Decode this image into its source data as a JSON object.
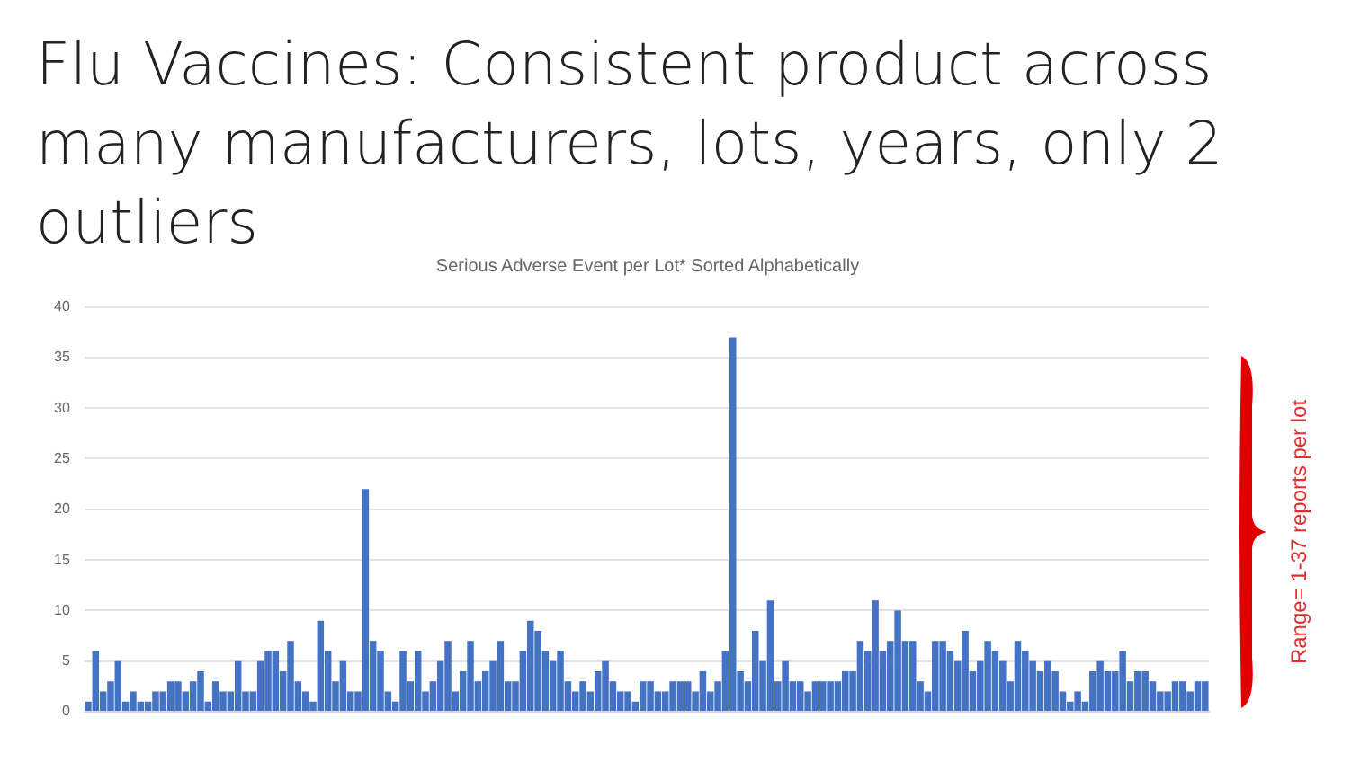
{
  "chart_data": {
    "type": "bar",
    "title": "Flu Vaccines: Consistent product across many manufacturers, lots, years, only 2 outliers",
    "subtitle": "Serious Adverse Event per Lot* Sorted Alphabetically",
    "annotations": [
      "Range= 1-37 reports per lot"
    ],
    "categories": [
      null,
      null,
      null,
      null,
      null,
      null,
      null,
      null,
      null,
      null,
      null,
      null,
      null,
      null,
      null,
      null,
      null,
      null,
      null,
      null,
      null,
      null,
      null,
      null,
      null,
      null,
      null,
      null,
      null,
      null,
      null,
      null,
      null,
      null,
      null,
      null,
      null,
      null,
      null,
      null,
      null,
      null,
      null,
      null,
      null,
      null,
      null,
      null,
      null,
      null,
      null,
      null,
      null,
      null,
      null,
      null,
      null,
      null,
      null,
      null,
      null,
      null,
      null,
      null,
      null,
      null,
      null,
      null,
      null,
      null,
      null,
      null,
      null,
      null,
      null,
      null,
      null,
      null,
      null,
      null,
      null,
      null,
      null,
      null,
      null,
      null,
      null,
      null,
      null,
      null,
      null,
      null,
      null,
      null,
      null,
      null,
      null,
      null,
      null,
      null,
      null,
      null,
      null,
      null,
      null,
      null,
      null,
      null,
      null,
      null,
      null,
      null,
      null,
      null,
      null,
      null,
      null,
      null,
      null,
      null,
      null,
      null,
      null,
      null,
      null,
      null,
      null,
      null,
      null,
      null,
      null,
      null,
      null,
      null,
      null,
      null,
      null,
      null,
      null,
      null,
      null,
      null,
      null,
      null,
      null,
      null,
      null,
      null,
      null,
      null
    ],
    "values": [
      1,
      6,
      2,
      3,
      5,
      1,
      2,
      1,
      1,
      2,
      2,
      3,
      3,
      2,
      3,
      4,
      1,
      3,
      2,
      2,
      5,
      2,
      2,
      5,
      6,
      6,
      4,
      7,
      3,
      2,
      1,
      9,
      6,
      3,
      5,
      2,
      2,
      22,
      7,
      6,
      2,
      1,
      6,
      3,
      6,
      2,
      3,
      5,
      7,
      2,
      4,
      7,
      3,
      4,
      5,
      7,
      3,
      3,
      6,
      9,
      8,
      6,
      5,
      6,
      3,
      2,
      3,
      2,
      4,
      5,
      3,
      2,
      2,
      1,
      3,
      3,
      2,
      2,
      3,
      3,
      3,
      2,
      4,
      2,
      3,
      6,
      37,
      4,
      3,
      8,
      5,
      11,
      3,
      5,
      3,
      3,
      2,
      3,
      3,
      3,
      3,
      4,
      4,
      7,
      6,
      11,
      6,
      7,
      10,
      7,
      7,
      3,
      2,
      7,
      7,
      6,
      5,
      8,
      4,
      5,
      7,
      6,
      5,
      3,
      7,
      6,
      5,
      4,
      5,
      4,
      2,
      1,
      2,
      1,
      4,
      5,
      4,
      4,
      6,
      3,
      4,
      4,
      3,
      2,
      2,
      3,
      3,
      2,
      3,
      3
    ],
    "color": "#4472c4",
    "ylim": [
      0,
      40
    ],
    "yticks": [
      0,
      5,
      10,
      15,
      20,
      25,
      30,
      35,
      40
    ],
    "grid": "y",
    "tick_labels": "y",
    "legend": false
  }
}
